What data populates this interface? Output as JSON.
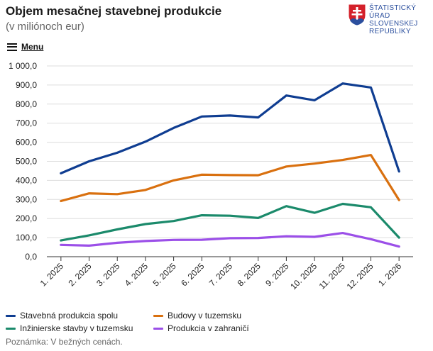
{
  "header": {
    "title": "Objem mesačnej stavebnej produkcie",
    "subtitle": "(v miliónoch eur)"
  },
  "logo": {
    "lines": [
      "ŠTATISTICKÝ",
      "ÚRAD",
      "SLOVENSKEJ",
      "REPUBLIKY"
    ],
    "colors": {
      "red": "#d4202a",
      "blue": "#2b4f9e"
    }
  },
  "menu": {
    "label": "Menu",
    "icon": "hamburger-menu-icon"
  },
  "note": "Poznámka: V bežných cenách.",
  "chart_data": {
    "type": "line",
    "title": "Objem mesačnej stavebnej produkcie",
    "subtitle": "(v miliónoch eur)",
    "xlabel": "",
    "ylabel": "",
    "categories": [
      "1. 2025",
      "2. 2025",
      "3. 2025",
      "4. 2025",
      "5. 2025",
      "6. 2025",
      "7. 2025",
      "8. 2025",
      "9. 2025",
      "10. 2025",
      "11. 2025",
      "12. 2025",
      "1. 2026"
    ],
    "ylim": [
      0,
      1000
    ],
    "yticks": [
      0,
      100,
      200,
      300,
      400,
      500,
      600,
      700,
      800,
      900,
      1000
    ],
    "ytick_labels": [
      "0,0",
      "100,0",
      "200,0",
      "300,0",
      "400,0",
      "500,0",
      "600,0",
      "700,0",
      "800,0",
      "900,0",
      "1 000,0"
    ],
    "grid": true,
    "legend_position": "bottom",
    "series": [
      {
        "name": "Stavebná produkcia spolu",
        "color": "#0f3d91",
        "values": [
          437,
          500,
          545,
          603,
          675,
          735,
          740,
          730,
          845,
          820,
          908,
          887,
          447
        ]
      },
      {
        "name": "Budovy v tuzemsku",
        "color": "#d9700f",
        "values": [
          292,
          332,
          328,
          350,
          400,
          430,
          428,
          427,
          473,
          488,
          507,
          533,
          297
        ]
      },
      {
        "name": "Inžinierske stavby v tuzemsku",
        "color": "#1b8a6b",
        "values": [
          85,
          112,
          143,
          171,
          187,
          217,
          215,
          203,
          265,
          230,
          277,
          259,
          100
        ]
      },
      {
        "name": "Produkcia v zahraničí",
        "color": "#9b4fe8",
        "values": [
          62,
          58,
          73,
          82,
          88,
          89,
          97,
          98,
          107,
          104,
          124,
          92,
          53
        ]
      }
    ]
  }
}
